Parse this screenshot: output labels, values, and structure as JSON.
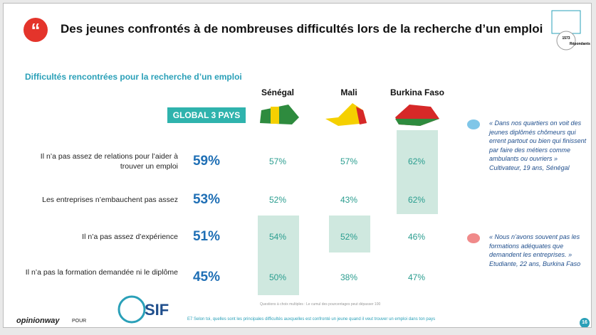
{
  "header": {
    "title": "Des jeunes confrontés à de nombreuses difficultés lors de la recherche d’un emploi",
    "respondents": "1573",
    "respondents_label": "Répondants"
  },
  "subtitle": "Difficultés rencontrées pour la recherche d’un emploi",
  "table": {
    "columns": [
      "GLOBAL 3 PAYS",
      "Sénégal",
      "Mali",
      "Burkina Faso"
    ],
    "rows": [
      [
        "Il n’a pas assez de relations pour l’aider à trouver un emploi",
        "59%",
        "57%",
        "57%",
        "62%"
      ],
      [
        "Les entreprises n’embauchent pas assez",
        "53%",
        "52%",
        "43%",
        "62%"
      ],
      [
        "Il n’a pas assez d’expérience",
        "51%",
        "54%",
        "52%",
        "46%"
      ],
      [
        "Il n’a pas la formation demandée ni le diplôme",
        "45%",
        "50%",
        "38%",
        "47%"
      ]
    ]
  },
  "quotes": [
    {
      "text": "« Dans nos quartiers on voit des jeunes diplômés chômeurs qui errent partout ou bien qui finissent par faire des métiers comme ambulants ou ouvriers »",
      "author": "Cultivateur, 19 ans, Sénégal"
    },
    {
      "text": "« Nous n’avons souvent pas les formations adéquates que demandent les entreprises. »",
      "author": "Etudiante, 22 ans, Burkina Faso"
    }
  ],
  "note": "Questions à choix multiples : Le cumul des pourcentages peut dépasser 100",
  "footer": {
    "question": "E7 Selon toi, quelles sont les principales difficultés auxquelles est confronté un jeune quand il veut trouver un emploi dans ton pays",
    "brand": "opinionway",
    "for": "POUR",
    "partner": "SIF",
    "page": "16"
  }
}
